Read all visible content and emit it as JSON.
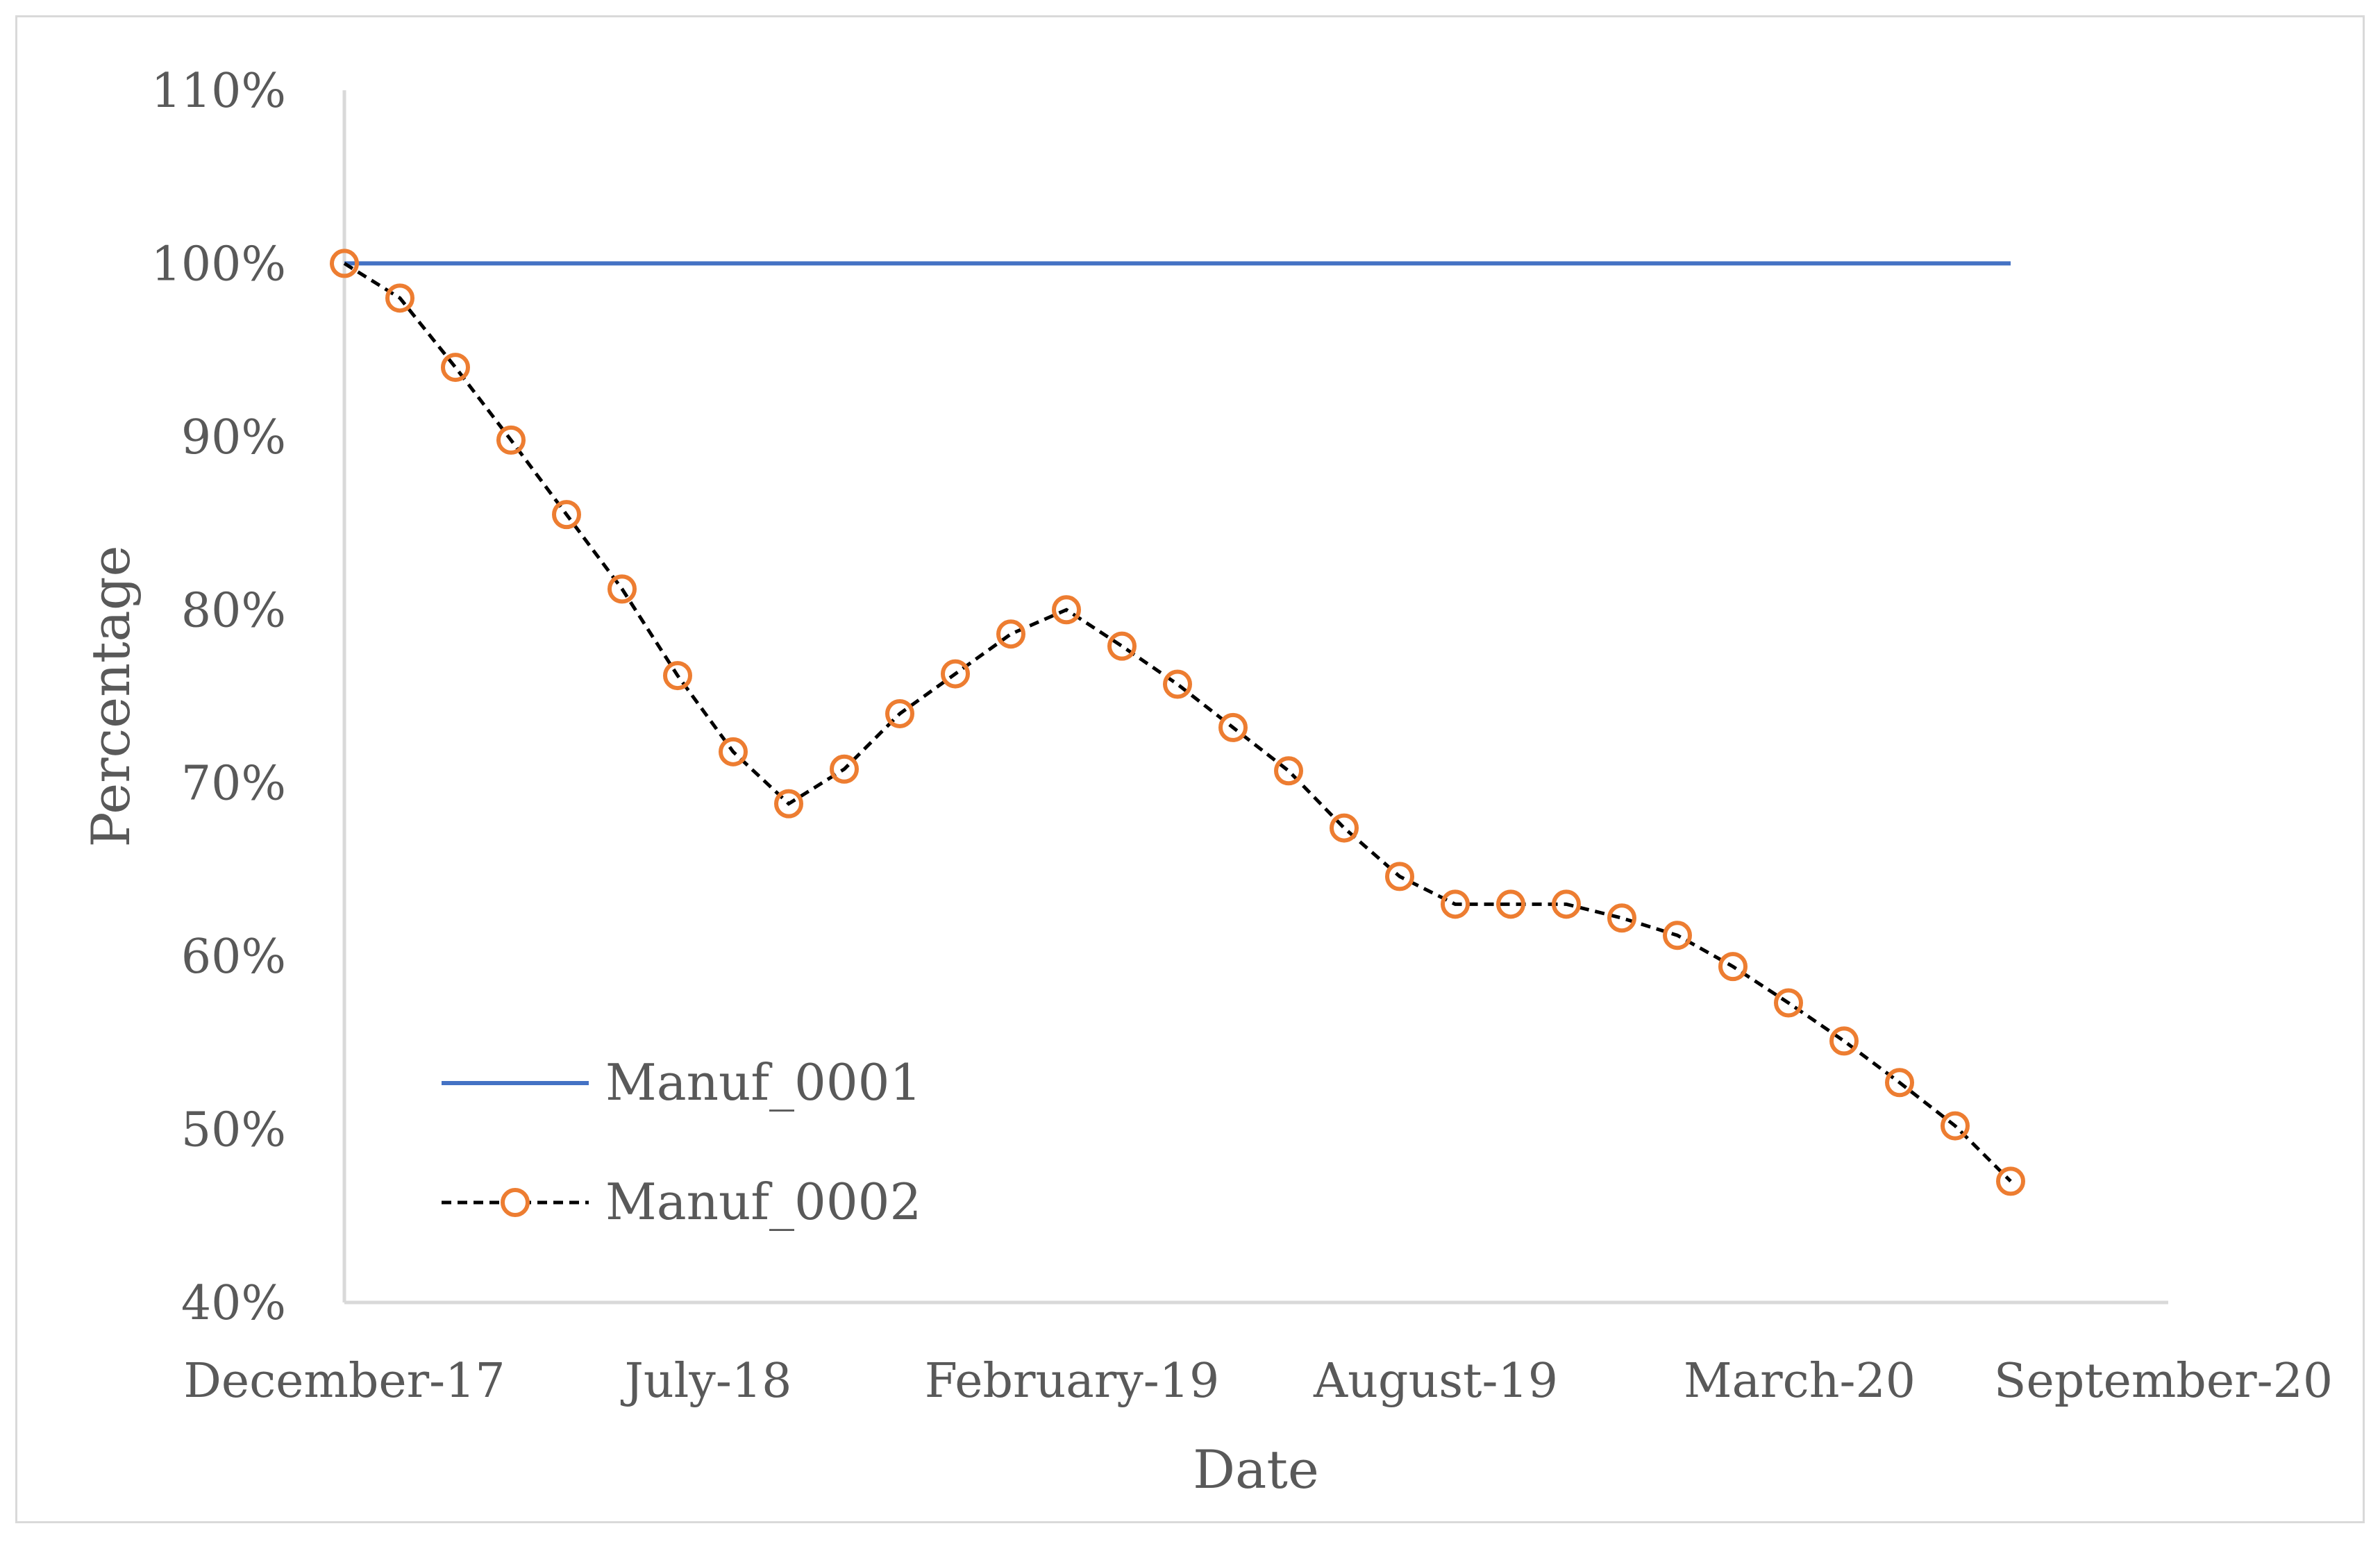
{
  "chart_data": {
    "type": "line",
    "title": "",
    "xlabel": "Date",
    "ylabel": "Percentage",
    "ylim": [
      40,
      110
    ],
    "yticks": [
      "40%",
      "50%",
      "60%",
      "70%",
      "80%",
      "90%",
      "100%",
      "110%"
    ],
    "xticks": [
      "December-17",
      "July-18",
      "February-19",
      "August-19",
      "March-20",
      "September-20"
    ],
    "x_start": "December-17",
    "legend_position": "bottom-left",
    "colors": {
      "series1": "#4472c4",
      "series2_line": "#000000",
      "series2_marker": "#ed7d31",
      "axis": "#d9d9d9",
      "text": "#595959"
    },
    "series": [
      {
        "name": "Manuf_0001",
        "style": "solid-line",
        "values": [
          100,
          100,
          100,
          100,
          100,
          100,
          100,
          100,
          100,
          100,
          100,
          100,
          100,
          100,
          100,
          100,
          100,
          100,
          100,
          100,
          100,
          100,
          100,
          100,
          100,
          100,
          100,
          100,
          100,
          100,
          100
        ]
      },
      {
        "name": "Manuf_0002",
        "style": "dashed-line-circle-markers",
        "values": [
          100,
          98,
          94,
          89.8,
          85.5,
          81.2,
          76.2,
          71.8,
          68.8,
          70.8,
          74,
          76.3,
          78.6,
          80,
          77.9,
          75.7,
          73.2,
          70.7,
          67.4,
          64.6,
          63,
          63,
          63,
          62.2,
          61.2,
          59.4,
          57.3,
          55.1,
          52.7,
          50.2,
          47
        ]
      }
    ]
  }
}
